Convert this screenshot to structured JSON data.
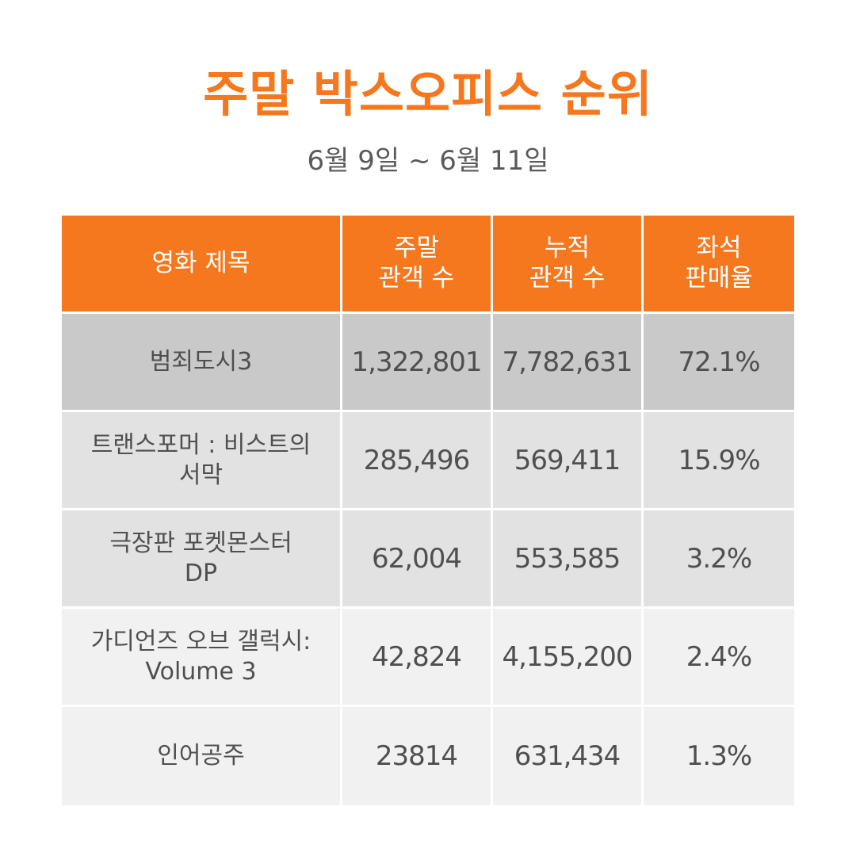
{
  "title": "주말 박스오피스 순위",
  "subtitle": "6월 9일 ~ 6월 11일",
  "table": {
    "headers": [
      {
        "line1": "영화 제목",
        "line2": ""
      },
      {
        "line1": "주말",
        "line2": "관객 수"
      },
      {
        "line1": "누적",
        "line2": "관객 수"
      },
      {
        "line1": "좌석",
        "line2": "판매율"
      }
    ],
    "rows": [
      {
        "title_line1": "범죄도시3",
        "title_line2": "",
        "weekend": "1,322,801",
        "cumulative": "7,782,631",
        "seat_rate": "72.1%"
      },
      {
        "title_line1": "트랜스포머 : 비스트의",
        "title_line2": "서막",
        "weekend": "285,496",
        "cumulative": "569,411",
        "seat_rate": "15.9%"
      },
      {
        "title_line1": "극장판 포켓몬스터",
        "title_line2": "DP",
        "weekend": "62,004",
        "cumulative": "553,585",
        "seat_rate": "3.2%"
      },
      {
        "title_line1": "가디언즈 오브 갤럭시:",
        "title_line2": "Volume 3",
        "weekend": "42,824",
        "cumulative": "4,155,200",
        "seat_rate": "2.4%"
      },
      {
        "title_line1": "인어공주",
        "title_line2": "",
        "weekend": "23814",
        "cumulative": "631,434",
        "seat_rate": "1.3%"
      }
    ]
  },
  "colors": {
    "accent": "#f5781e",
    "text": "#4f4f4f",
    "row_highlight": "#c9c9c9",
    "row_mid": "#e2e2e2",
    "row_light": "#f1f1f1"
  }
}
